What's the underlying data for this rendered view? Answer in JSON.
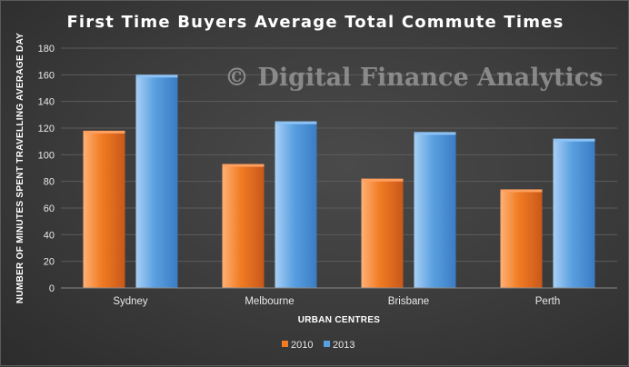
{
  "colors": {
    "s2010": "#f07b22",
    "s2013": "#5aa0e0",
    "gridline": "#5c5c5c",
    "background": "#3a3a3a"
  },
  "watermark": "© Digital Finance Analytics",
  "chart_data": {
    "type": "bar",
    "title": "First Time Buyers Average Total Commute Times",
    "xlabel": "URBAN CENTRES",
    "ylabel": "NUMBER OF MINUTES SPENT TRAVELLING AVERAGE DAY",
    "categories": [
      "Sydney",
      "Melbourne",
      "Brisbane",
      "Perth"
    ],
    "series": [
      {
        "name": "2010",
        "values": [
          118,
          93,
          82,
          74
        ]
      },
      {
        "name": "2013",
        "values": [
          160,
          125,
          117,
          112
        ]
      }
    ],
    "ylim": [
      0,
      180
    ],
    "yticks": [
      0,
      20,
      40,
      60,
      80,
      100,
      120,
      140,
      160,
      180
    ],
    "grid": true,
    "legend": "bottom-center"
  }
}
